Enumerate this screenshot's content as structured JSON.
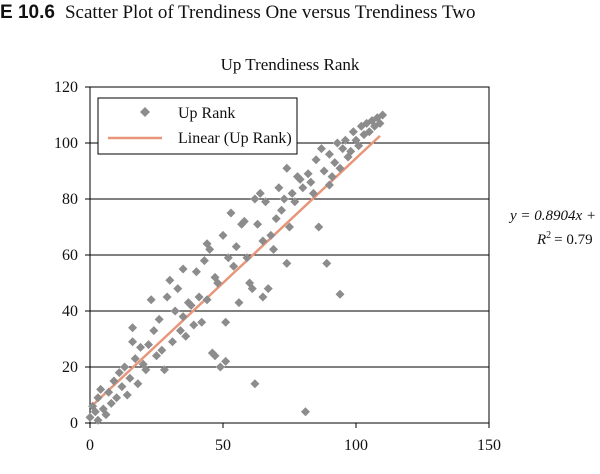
{
  "figure": {
    "label": "E 10.6",
    "text": "Scatter Plot of Trendiness One versus Trendiness Two"
  },
  "chart_data": {
    "type": "scatter",
    "title": "Up Trendiness Rank",
    "xlabel": "",
    "ylabel": "",
    "xlim": [
      0,
      150
    ],
    "ylim": [
      0,
      120
    ],
    "x_ticks": [
      "0",
      "50",
      "100",
      "150"
    ],
    "y_ticks": [
      "0",
      "20",
      "40",
      "60",
      "80",
      "100",
      "120"
    ],
    "grid": "horizontal",
    "legend": {
      "placement": "top-left",
      "entries": [
        "Up Rank",
        "Linear (Up Rank)"
      ]
    },
    "colors": {
      "points": "#8c8c8c",
      "trendline": "#e8967a",
      "grid": "#000000"
    },
    "trendline": {
      "name": "Linear (Up Rank)",
      "slope": 0.8904,
      "intercept": 5.5,
      "x_range": [
        0,
        109
      ],
      "equation": "y = 0.8904x +",
      "r2_label": "R",
      "r2_value": "= 0.79"
    },
    "series": [
      {
        "name": "Up Rank",
        "marker": "diamond",
        "points": [
          [
            0,
            2
          ],
          [
            1,
            6
          ],
          [
            2,
            4
          ],
          [
            3,
            1
          ],
          [
            3,
            9
          ],
          [
            4,
            12
          ],
          [
            5,
            5
          ],
          [
            6,
            3
          ],
          [
            7,
            11
          ],
          [
            8,
            7
          ],
          [
            9,
            15
          ],
          [
            10,
            9
          ],
          [
            11,
            18
          ],
          [
            12,
            13
          ],
          [
            13,
            20
          ],
          [
            14,
            10
          ],
          [
            15,
            16
          ],
          [
            16,
            29
          ],
          [
            16,
            34
          ],
          [
            17,
            23
          ],
          [
            18,
            14
          ],
          [
            19,
            27
          ],
          [
            20,
            21
          ],
          [
            21,
            19
          ],
          [
            22,
            28
          ],
          [
            23,
            44
          ],
          [
            24,
            33
          ],
          [
            25,
            24
          ],
          [
            26,
            37
          ],
          [
            27,
            26
          ],
          [
            28,
            19
          ],
          [
            29,
            45
          ],
          [
            30,
            51
          ],
          [
            31,
            29
          ],
          [
            32,
            40
          ],
          [
            33,
            48
          ],
          [
            34,
            33
          ],
          [
            35,
            55
          ],
          [
            35,
            38
          ],
          [
            36,
            31
          ],
          [
            37,
            43
          ],
          [
            38,
            42
          ],
          [
            39,
            35
          ],
          [
            40,
            54
          ],
          [
            41,
            45
          ],
          [
            42,
            36
          ],
          [
            43,
            58
          ],
          [
            44,
            44
          ],
          [
            44,
            64
          ],
          [
            45,
            62
          ],
          [
            46,
            25
          ],
          [
            47,
            24
          ],
          [
            47,
            52
          ],
          [
            48,
            50
          ],
          [
            49,
            20
          ],
          [
            50,
            67
          ],
          [
            51,
            22
          ],
          [
            51,
            36
          ],
          [
            52,
            59
          ],
          [
            53,
            75
          ],
          [
            54,
            56
          ],
          [
            55,
            63
          ],
          [
            56,
            43
          ],
          [
            57,
            71
          ],
          [
            58,
            72
          ],
          [
            59,
            59
          ],
          [
            60,
            50
          ],
          [
            61,
            48
          ],
          [
            62,
            14
          ],
          [
            62,
            80
          ],
          [
            63,
            71
          ],
          [
            64,
            82
          ],
          [
            65,
            45
          ],
          [
            65,
            65
          ],
          [
            66,
            79
          ],
          [
            67,
            48
          ],
          [
            68,
            67
          ],
          [
            69,
            62
          ],
          [
            70,
            73
          ],
          [
            71,
            84
          ],
          [
            72,
            76
          ],
          [
            73,
            80
          ],
          [
            74,
            57
          ],
          [
            74,
            91
          ],
          [
            75,
            70
          ],
          [
            76,
            82
          ],
          [
            77,
            79
          ],
          [
            78,
            88
          ],
          [
            79,
            87
          ],
          [
            80,
            84
          ],
          [
            81,
            4
          ],
          [
            82,
            89
          ],
          [
            83,
            86
          ],
          [
            84,
            82
          ],
          [
            85,
            94
          ],
          [
            86,
            70
          ],
          [
            87,
            98
          ],
          [
            88,
            90
          ],
          [
            89,
            57
          ],
          [
            90,
            96
          ],
          [
            90,
            85
          ],
          [
            91,
            88
          ],
          [
            92,
            93
          ],
          [
            93,
            100
          ],
          [
            94,
            91
          ],
          [
            94,
            46
          ],
          [
            95,
            98
          ],
          [
            96,
            101
          ],
          [
            97,
            95
          ],
          [
            98,
            97
          ],
          [
            99,
            104
          ],
          [
            100,
            101
          ],
          [
            101,
            99
          ],
          [
            102,
            106
          ],
          [
            103,
            103
          ],
          [
            104,
            107
          ],
          [
            105,
            104
          ],
          [
            106,
            108
          ],
          [
            107,
            106
          ],
          [
            108,
            109
          ],
          [
            109,
            107
          ],
          [
            110,
            110
          ]
        ]
      }
    ]
  }
}
